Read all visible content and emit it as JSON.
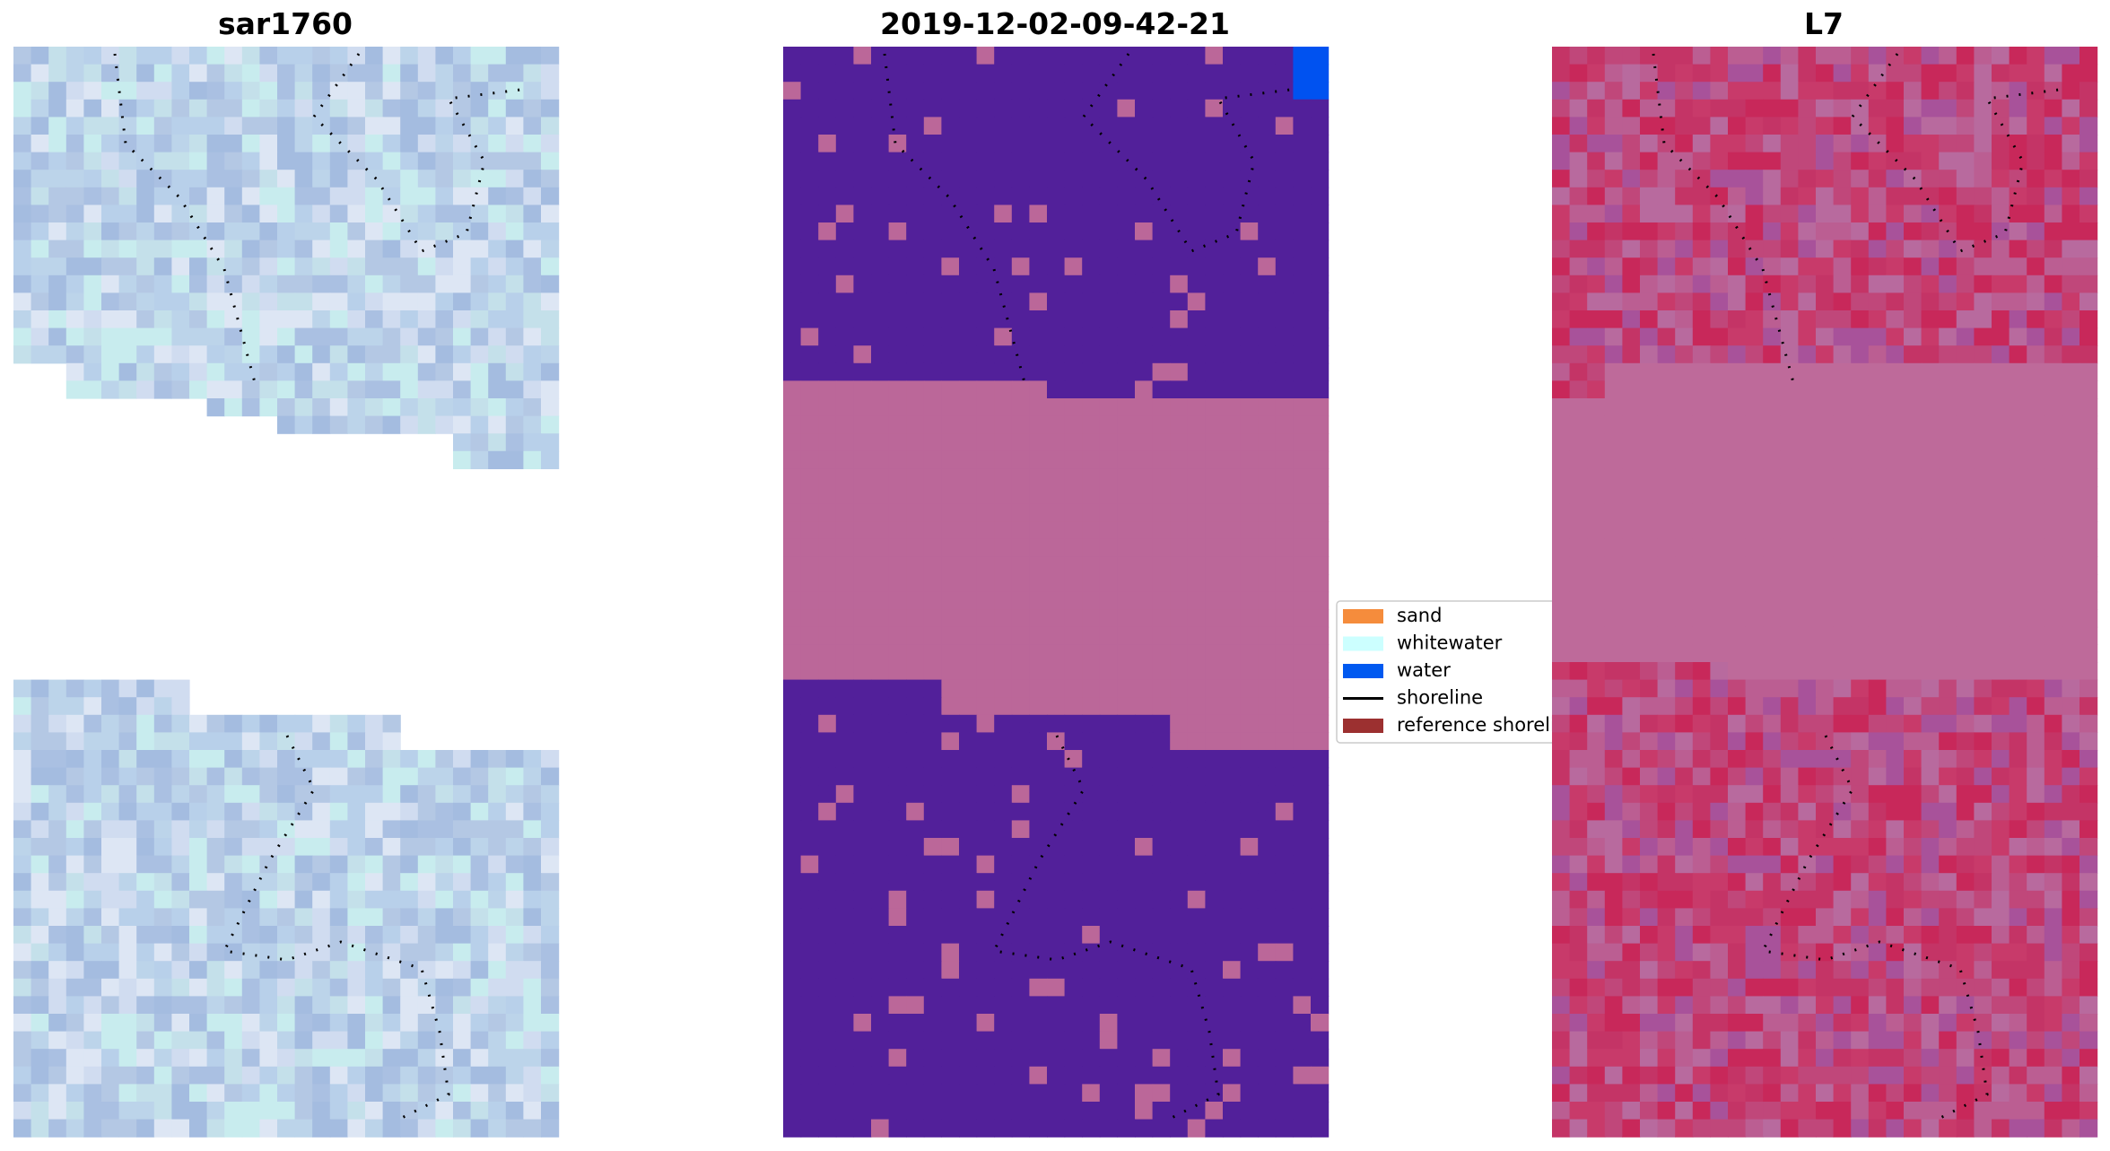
{
  "panels": [
    {
      "title": "sar1760"
    },
    {
      "title": "2019-12-02-09-42-21"
    },
    {
      "title": "L7"
    }
  ],
  "legend": {
    "items": [
      {
        "label": "sand",
        "color": "#f58c3c",
        "kind": "patch"
      },
      {
        "label": "whitewater",
        "color": "#ccffff",
        "kind": "patch"
      },
      {
        "label": "water",
        "color": "#0059f0",
        "kind": "patch"
      },
      {
        "label": "shoreline",
        "color": "#000000",
        "kind": "line"
      },
      {
        "label": "reference shoreline",
        "color": "#9c3030",
        "kind": "patch"
      }
    ]
  }
}
